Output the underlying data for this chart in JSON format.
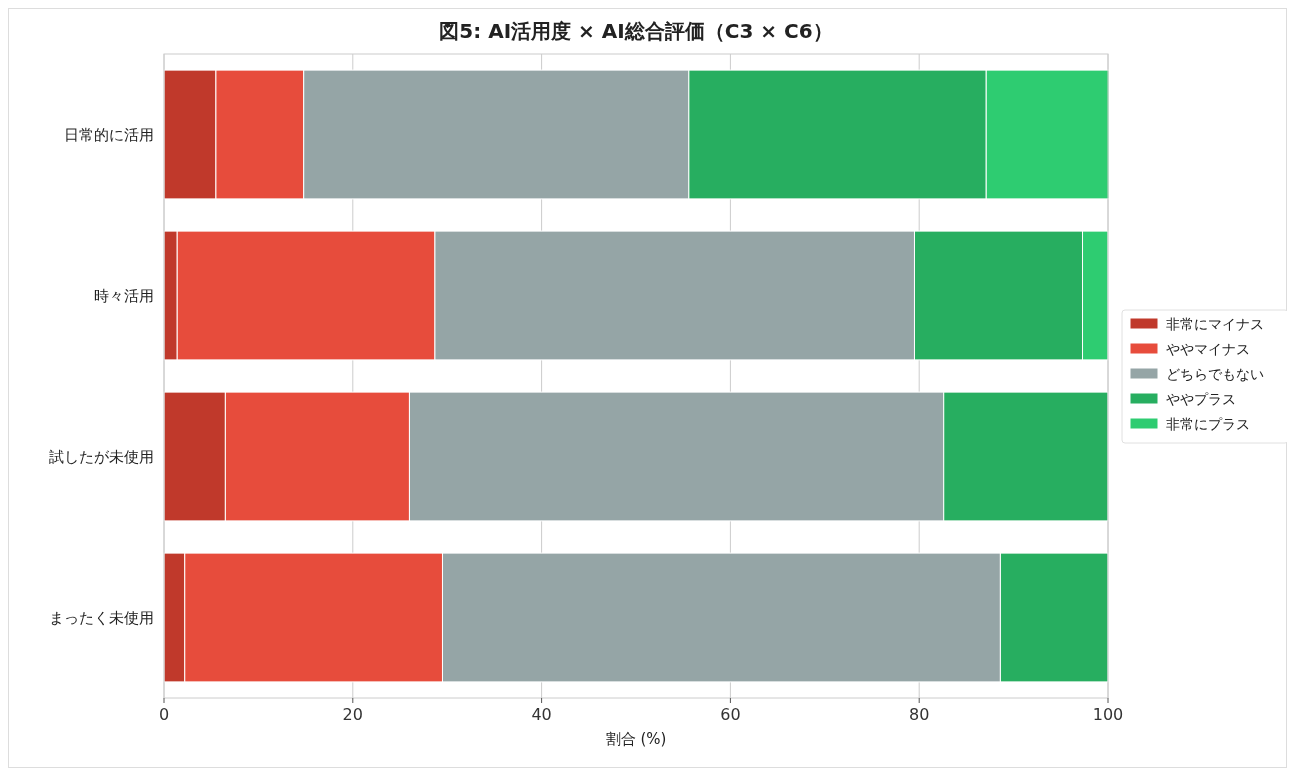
{
  "chart_data": {
    "type": "bar",
    "orientation": "horizontal",
    "stacked": true,
    "title": "図5: AI活用度 × AI総合評価（C3 × C6）",
    "xlabel": "割合 (%)",
    "categories": [
      "日常的に活用",
      "時々活用",
      "試したが未使用",
      "まったく未使用"
    ],
    "series": [
      {
        "name": "非常にマイナス",
        "color": "#c0392b",
        "values": [
          5.5,
          1.4,
          6.5,
          2.2
        ]
      },
      {
        "name": "ややマイナス",
        "color": "#e74c3c",
        "values": [
          9.3,
          27.3,
          19.5,
          27.3
        ]
      },
      {
        "name": "どちらでもない",
        "color": "#95a5a6",
        "values": [
          40.8,
          50.8,
          56.6,
          59.1
        ]
      },
      {
        "name": "ややプラス",
        "color": "#27ae60",
        "values": [
          31.5,
          17.8,
          17.4,
          11.4
        ]
      },
      {
        "name": "非常にプラス",
        "color": "#2ecc71",
        "values": [
          13.0,
          2.7,
          0,
          0
        ]
      }
    ],
    "xlim": [
      0,
      100
    ],
    "xticks": [
      0,
      20,
      40,
      60,
      80,
      100
    ],
    "grid": "x",
    "legend": "right"
  }
}
